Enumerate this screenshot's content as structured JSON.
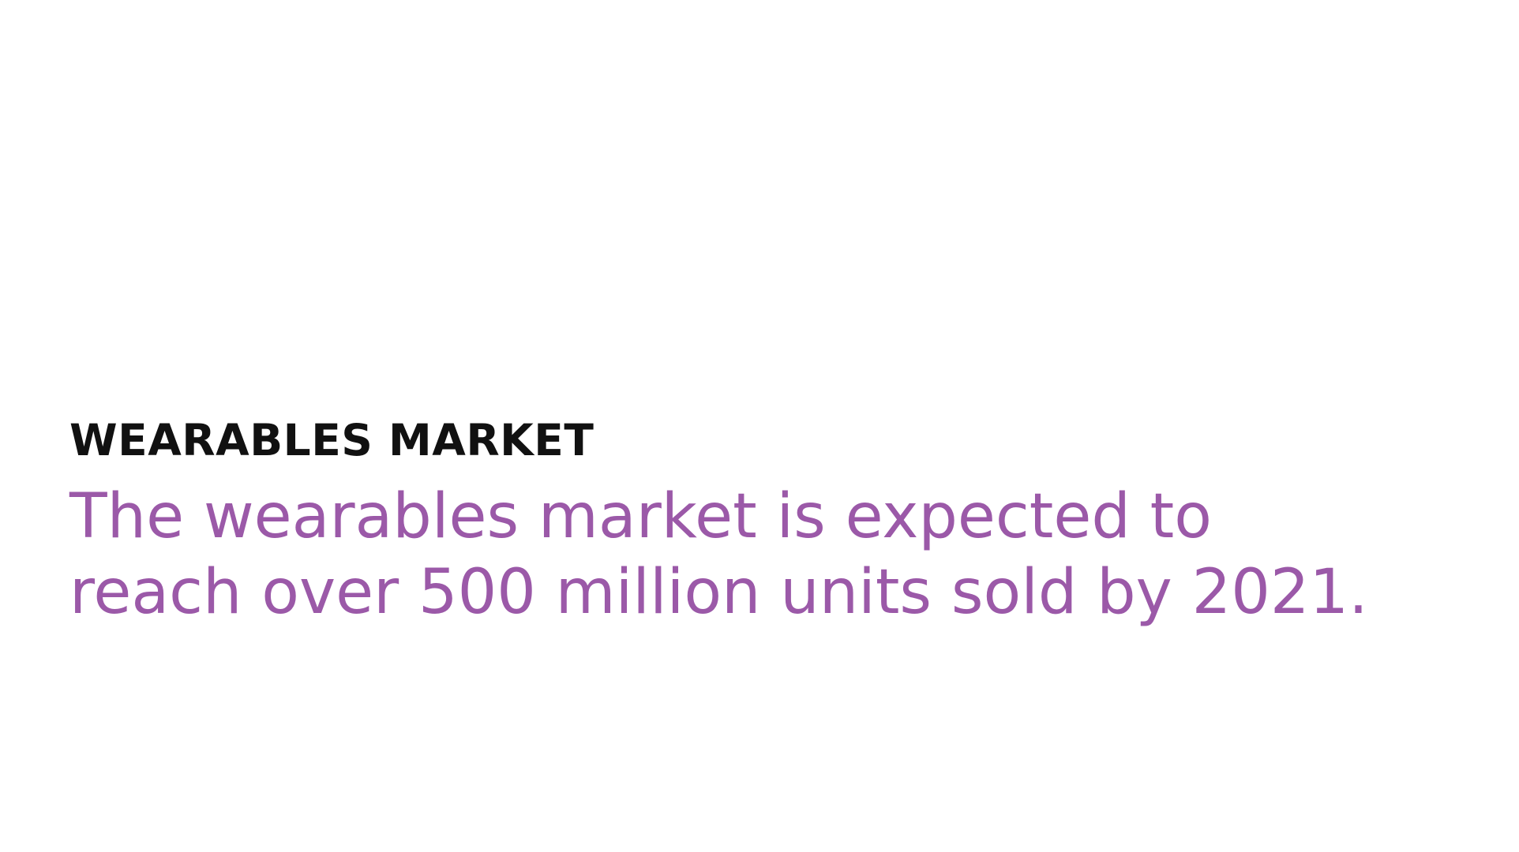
{
  "slide": {
    "heading": "WEARABLES MARKET",
    "statement_line1": "The wearables market is expected to",
    "statement_line2": "reach over 500 million units sold by 2021.",
    "colors": {
      "background": "#ffffff",
      "heading": "#111111",
      "statement": "#9b59a8"
    }
  }
}
